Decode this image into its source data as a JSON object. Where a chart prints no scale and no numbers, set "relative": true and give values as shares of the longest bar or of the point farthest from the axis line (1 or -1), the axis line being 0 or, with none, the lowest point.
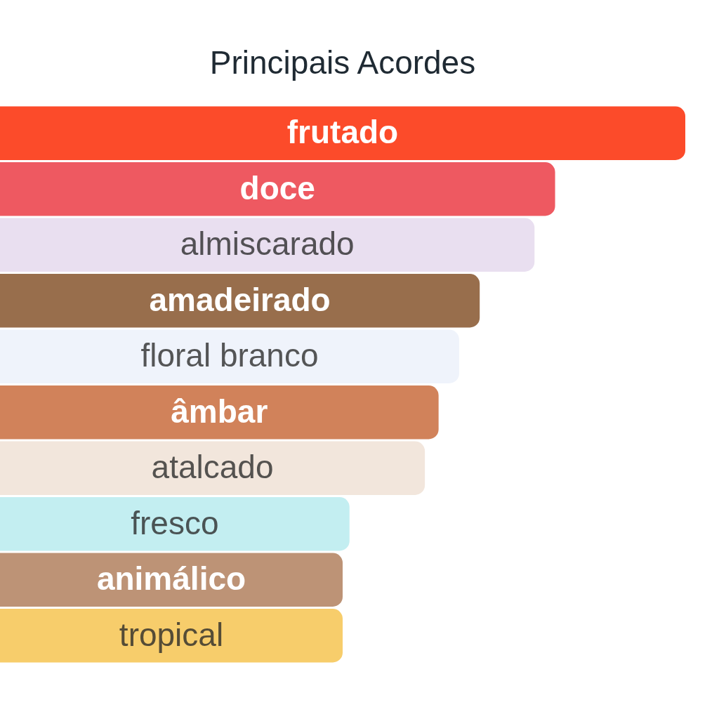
{
  "chart_data": {
    "type": "bar",
    "orientation": "horizontal",
    "relative": true,
    "title": "Principais Acordes",
    "categories": [
      "frutado",
      "doce",
      "almiscarado",
      "amadeirado",
      "floral branco",
      "âmbar",
      "atalcado",
      "fresco",
      "animálico",
      "tropical"
    ],
    "values": [
      1,
      0.81,
      0.78,
      0.7,
      0.67,
      0.64,
      0.62,
      0.51,
      0.5,
      0.5
    ],
    "colors": [
      "#fc4b2a",
      "#ee5961",
      "#e9dff0",
      "#986e4c",
      "#eff3fb",
      "#d1825a",
      "#f2e6dc",
      "#c3eef1",
      "#bd9376",
      "#f7cd6b"
    ]
  }
}
